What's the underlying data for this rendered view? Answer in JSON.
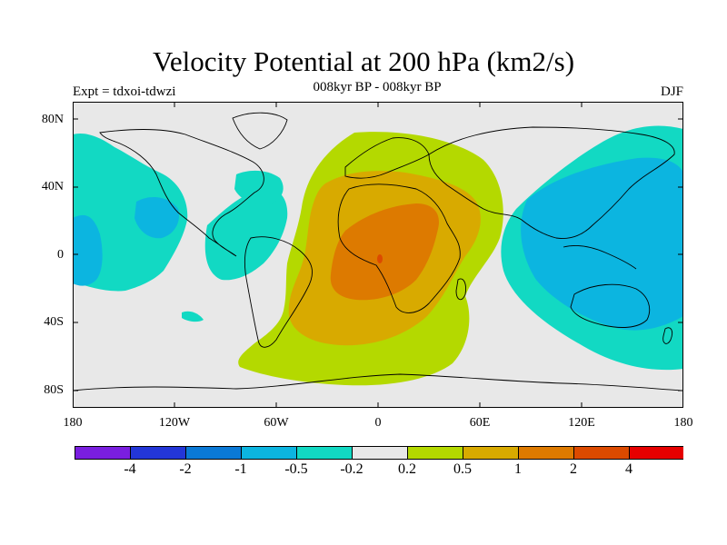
{
  "title": "Velocity Potential at 200 hPa (km2/s)",
  "subtitle": "008kyr BP - 008kyr BP",
  "left_label": "Expt = tdxoi-tdwzi",
  "right_label": "DJF",
  "y_ticks": [
    "80N",
    "40N",
    "0",
    "40S",
    "80S"
  ],
  "x_ticks": [
    "180",
    "120W",
    "60W",
    "0",
    "60E",
    "120E",
    "180"
  ],
  "colorbar": {
    "colors": [
      "#7a1ee0",
      "#2336d8",
      "#0a79d6",
      "#0cb5e0",
      "#12d9c3",
      "#e8e8e8",
      "#b4d900",
      "#d8aa00",
      "#dd7a00",
      "#dc4a00",
      "#e60000"
    ],
    "labels": [
      "-4",
      "-2",
      "-1",
      "-0.5",
      "-0.2",
      "0.2",
      "0.5",
      "1",
      "2",
      "4"
    ]
  },
  "colors": {
    "background": "#e8e8e8",
    "neg_light": "#12d9c3",
    "neg_mid": "#0cb5e0",
    "pos_light": "#b4d900",
    "pos_mid": "#d8aa00",
    "pos_strong": "#dd7a00",
    "pos_peak": "#dc4a00"
  }
}
